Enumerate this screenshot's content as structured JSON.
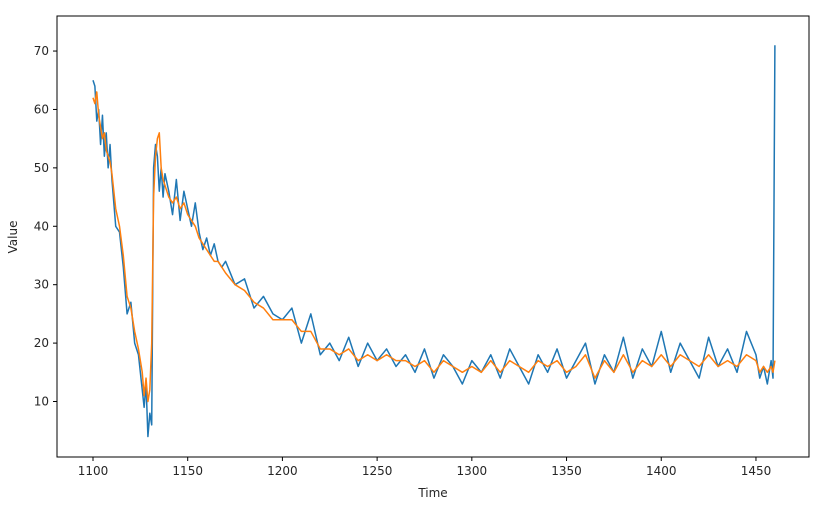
{
  "chart_data": {
    "type": "line",
    "title": "",
    "xlabel": "Time",
    "ylabel": "Value",
    "xlim": [
      1081,
      1478
    ],
    "ylim": [
      0.5,
      76
    ],
    "xticks": [
      1100,
      1150,
      1200,
      1250,
      1300,
      1350,
      1400,
      1450
    ],
    "yticks": [
      10,
      20,
      30,
      40,
      50,
      60,
      70
    ],
    "grid": false,
    "legend": "none",
    "series": [
      {
        "color": "#1f77b4",
        "x": [
          1100,
          1101,
          1102,
          1103,
          1104,
          1105,
          1106,
          1107,
          1108,
          1109,
          1110,
          1112,
          1114,
          1116,
          1118,
          1120,
          1122,
          1124,
          1126,
          1127,
          1128,
          1129,
          1130,
          1131,
          1132,
          1133,
          1134,
          1135,
          1136,
          1137,
          1138,
          1140,
          1142,
          1144,
          1146,
          1148,
          1150,
          1152,
          1154,
          1156,
          1158,
          1160,
          1162,
          1164,
          1166,
          1168,
          1170,
          1175,
          1180,
          1185,
          1190,
          1195,
          1200,
          1205,
          1210,
          1215,
          1220,
          1225,
          1230,
          1235,
          1240,
          1245,
          1250,
          1255,
          1260,
          1265,
          1270,
          1275,
          1280,
          1285,
          1290,
          1295,
          1300,
          1305,
          1310,
          1315,
          1320,
          1325,
          1330,
          1335,
          1340,
          1345,
          1350,
          1355,
          1360,
          1365,
          1370,
          1375,
          1380,
          1385,
          1390,
          1395,
          1400,
          1405,
          1410,
          1415,
          1420,
          1425,
          1430,
          1435,
          1440,
          1445,
          1450,
          1452,
          1454,
          1456,
          1458,
          1459,
          1460
        ],
        "values": [
          65,
          64,
          58,
          60,
          54,
          59,
          52,
          56,
          50,
          54,
          48,
          40,
          39,
          33,
          25,
          27,
          20,
          18,
          12,
          9,
          13,
          4,
          8,
          6,
          50,
          54,
          52,
          46,
          50,
          45,
          49,
          46,
          42,
          48,
          41,
          46,
          43,
          40,
          44,
          39,
          36,
          38,
          35,
          37,
          34,
          33,
          34,
          30,
          31,
          26,
          28,
          25,
          24,
          26,
          20,
          25,
          18,
          20,
          17,
          21,
          16,
          20,
          17,
          19,
          16,
          18,
          15,
          19,
          14,
          18,
          16,
          13,
          17,
          15,
          18,
          14,
          19,
          16,
          13,
          18,
          15,
          19,
          14,
          17,
          20,
          13,
          18,
          15,
          21,
          14,
          19,
          16,
          22,
          15,
          20,
          17,
          14,
          21,
          16,
          19,
          15,
          22,
          18,
          14,
          16,
          13,
          17,
          14,
          71
        ]
      },
      {
        "color": "#ff7f0e",
        "x": [
          1100,
          1101,
          1102,
          1103,
          1104,
          1105,
          1106,
          1107,
          1108,
          1109,
          1110,
          1112,
          1114,
          1116,
          1118,
          1120,
          1122,
          1124,
          1126,
          1127,
          1128,
          1129,
          1130,
          1131,
          1132,
          1133,
          1134,
          1135,
          1136,
          1137,
          1138,
          1140,
          1142,
          1144,
          1146,
          1148,
          1150,
          1152,
          1154,
          1156,
          1158,
          1160,
          1162,
          1164,
          1166,
          1168,
          1170,
          1175,
          1180,
          1185,
          1190,
          1195,
          1200,
          1205,
          1210,
          1215,
          1220,
          1225,
          1230,
          1235,
          1240,
          1245,
          1250,
          1255,
          1260,
          1265,
          1270,
          1275,
          1280,
          1285,
          1290,
          1295,
          1300,
          1305,
          1310,
          1315,
          1320,
          1325,
          1330,
          1335,
          1340,
          1345,
          1350,
          1355,
          1360,
          1365,
          1370,
          1375,
          1380,
          1385,
          1390,
          1395,
          1400,
          1405,
          1410,
          1415,
          1420,
          1425,
          1430,
          1435,
          1440,
          1445,
          1450,
          1452,
          1454,
          1456,
          1458,
          1459,
          1460
        ],
        "values": [
          62,
          61,
          63,
          59,
          57,
          55,
          56,
          53,
          52,
          51,
          49,
          43,
          40,
          35,
          28,
          26,
          22,
          19,
          15,
          11,
          14,
          10,
          12,
          20,
          45,
          52,
          55,
          56,
          50,
          48,
          47,
          45,
          44,
          45,
          43,
          44,
          42,
          41,
          40,
          38,
          37,
          36,
          35,
          34,
          34,
          33,
          32,
          30,
          29,
          27,
          26,
          24,
          24,
          24,
          22,
          22,
          19,
          19,
          18,
          19,
          17,
          18,
          17,
          18,
          17,
          17,
          16,
          17,
          15,
          17,
          16,
          15,
          16,
          15,
          17,
          15,
          17,
          16,
          15,
          17,
          16,
          17,
          15,
          16,
          18,
          14,
          17,
          15,
          18,
          15,
          17,
          16,
          18,
          16,
          18,
          17,
          16,
          18,
          16,
          17,
          16,
          18,
          17,
          15,
          16,
          15,
          16,
          15,
          17
        ]
      }
    ]
  }
}
